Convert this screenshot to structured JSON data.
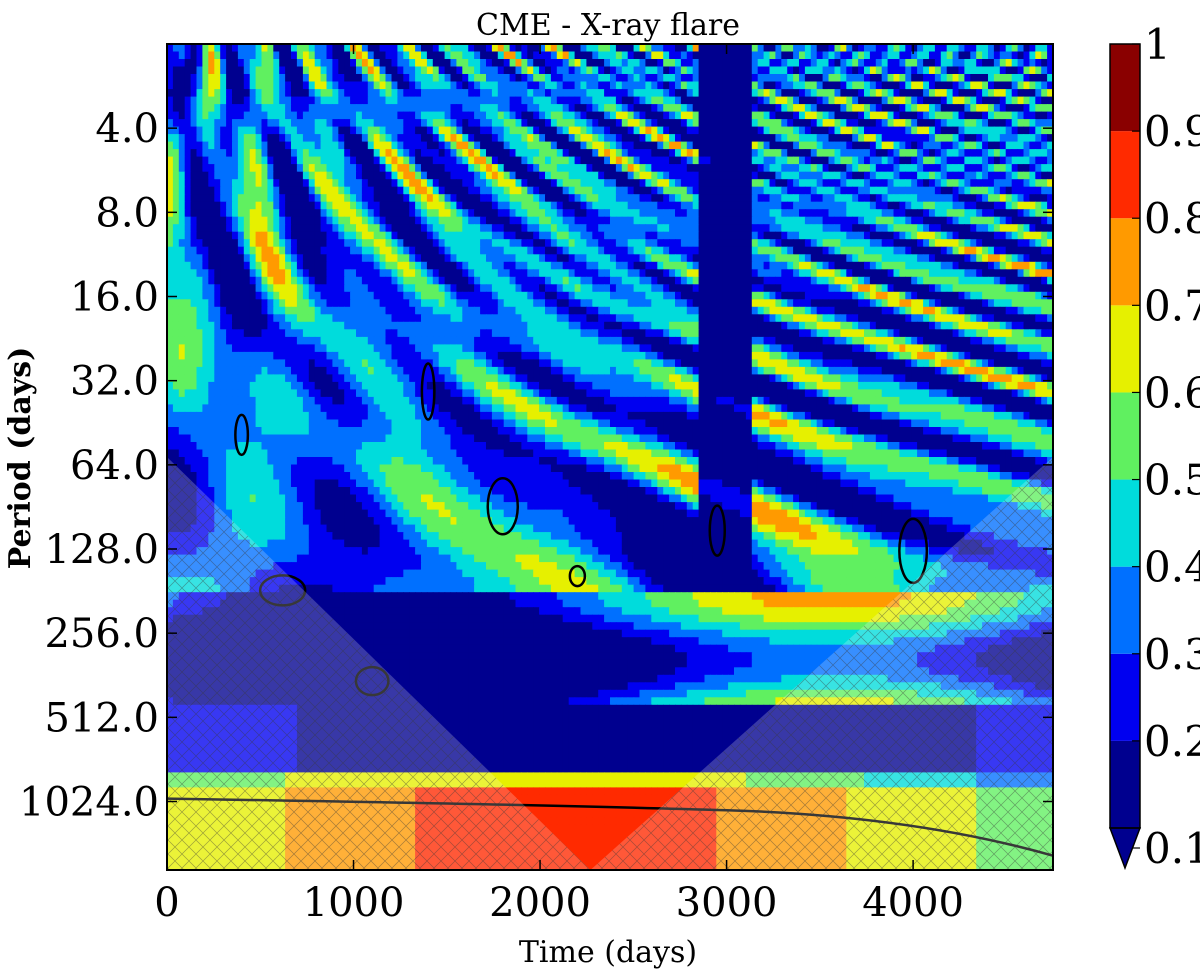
{
  "chart_data": {
    "type": "heatmap",
    "title": "CME - X-ray flare",
    "xlabel": "Time (days)",
    "ylabel": "Period (days)",
    "xlim": [
      0,
      4750
    ],
    "x_ticks": [
      0,
      1000,
      2000,
      3000,
      4000
    ],
    "x_tick_labels": [
      "0",
      "1000",
      "2000",
      "3000",
      "4000"
    ],
    "y_scale": "log2",
    "ylim": [
      2,
      1800
    ],
    "y_ticks": [
      4,
      8,
      16,
      32,
      64,
      128,
      256,
      512,
      1024
    ],
    "y_tick_labels": [
      "4.0",
      "8.0",
      "16.0",
      "32.0",
      "64.0",
      "128.0",
      "256.0",
      "512.0",
      "1024.0"
    ],
    "colorbar": {
      "levels": [
        0.1,
        0.2,
        0.3,
        0.4,
        0.5,
        0.6,
        0.7,
        0.8,
        0.9,
        1.0
      ],
      "tick_labels": [
        "0.1",
        "0.2",
        "0.3",
        "0.4",
        "0.5",
        "0.6",
        "0.7",
        "0.8",
        "0.9",
        "1"
      ],
      "colors": [
        "#00008f",
        "#0000f0",
        "#0070ff",
        "#00dcdc",
        "#60f060",
        "#e6f000",
        "#ff9a00",
        "#ff2a00",
        "#8a0000"
      ]
    },
    "features": {
      "high_coherence_band": {
        "period_range": [
          900,
          1800
        ],
        "value": 0.85
      },
      "cone_of_influence": "hatched region at edges and bottom",
      "significant_contours": "black contour lines"
    }
  }
}
